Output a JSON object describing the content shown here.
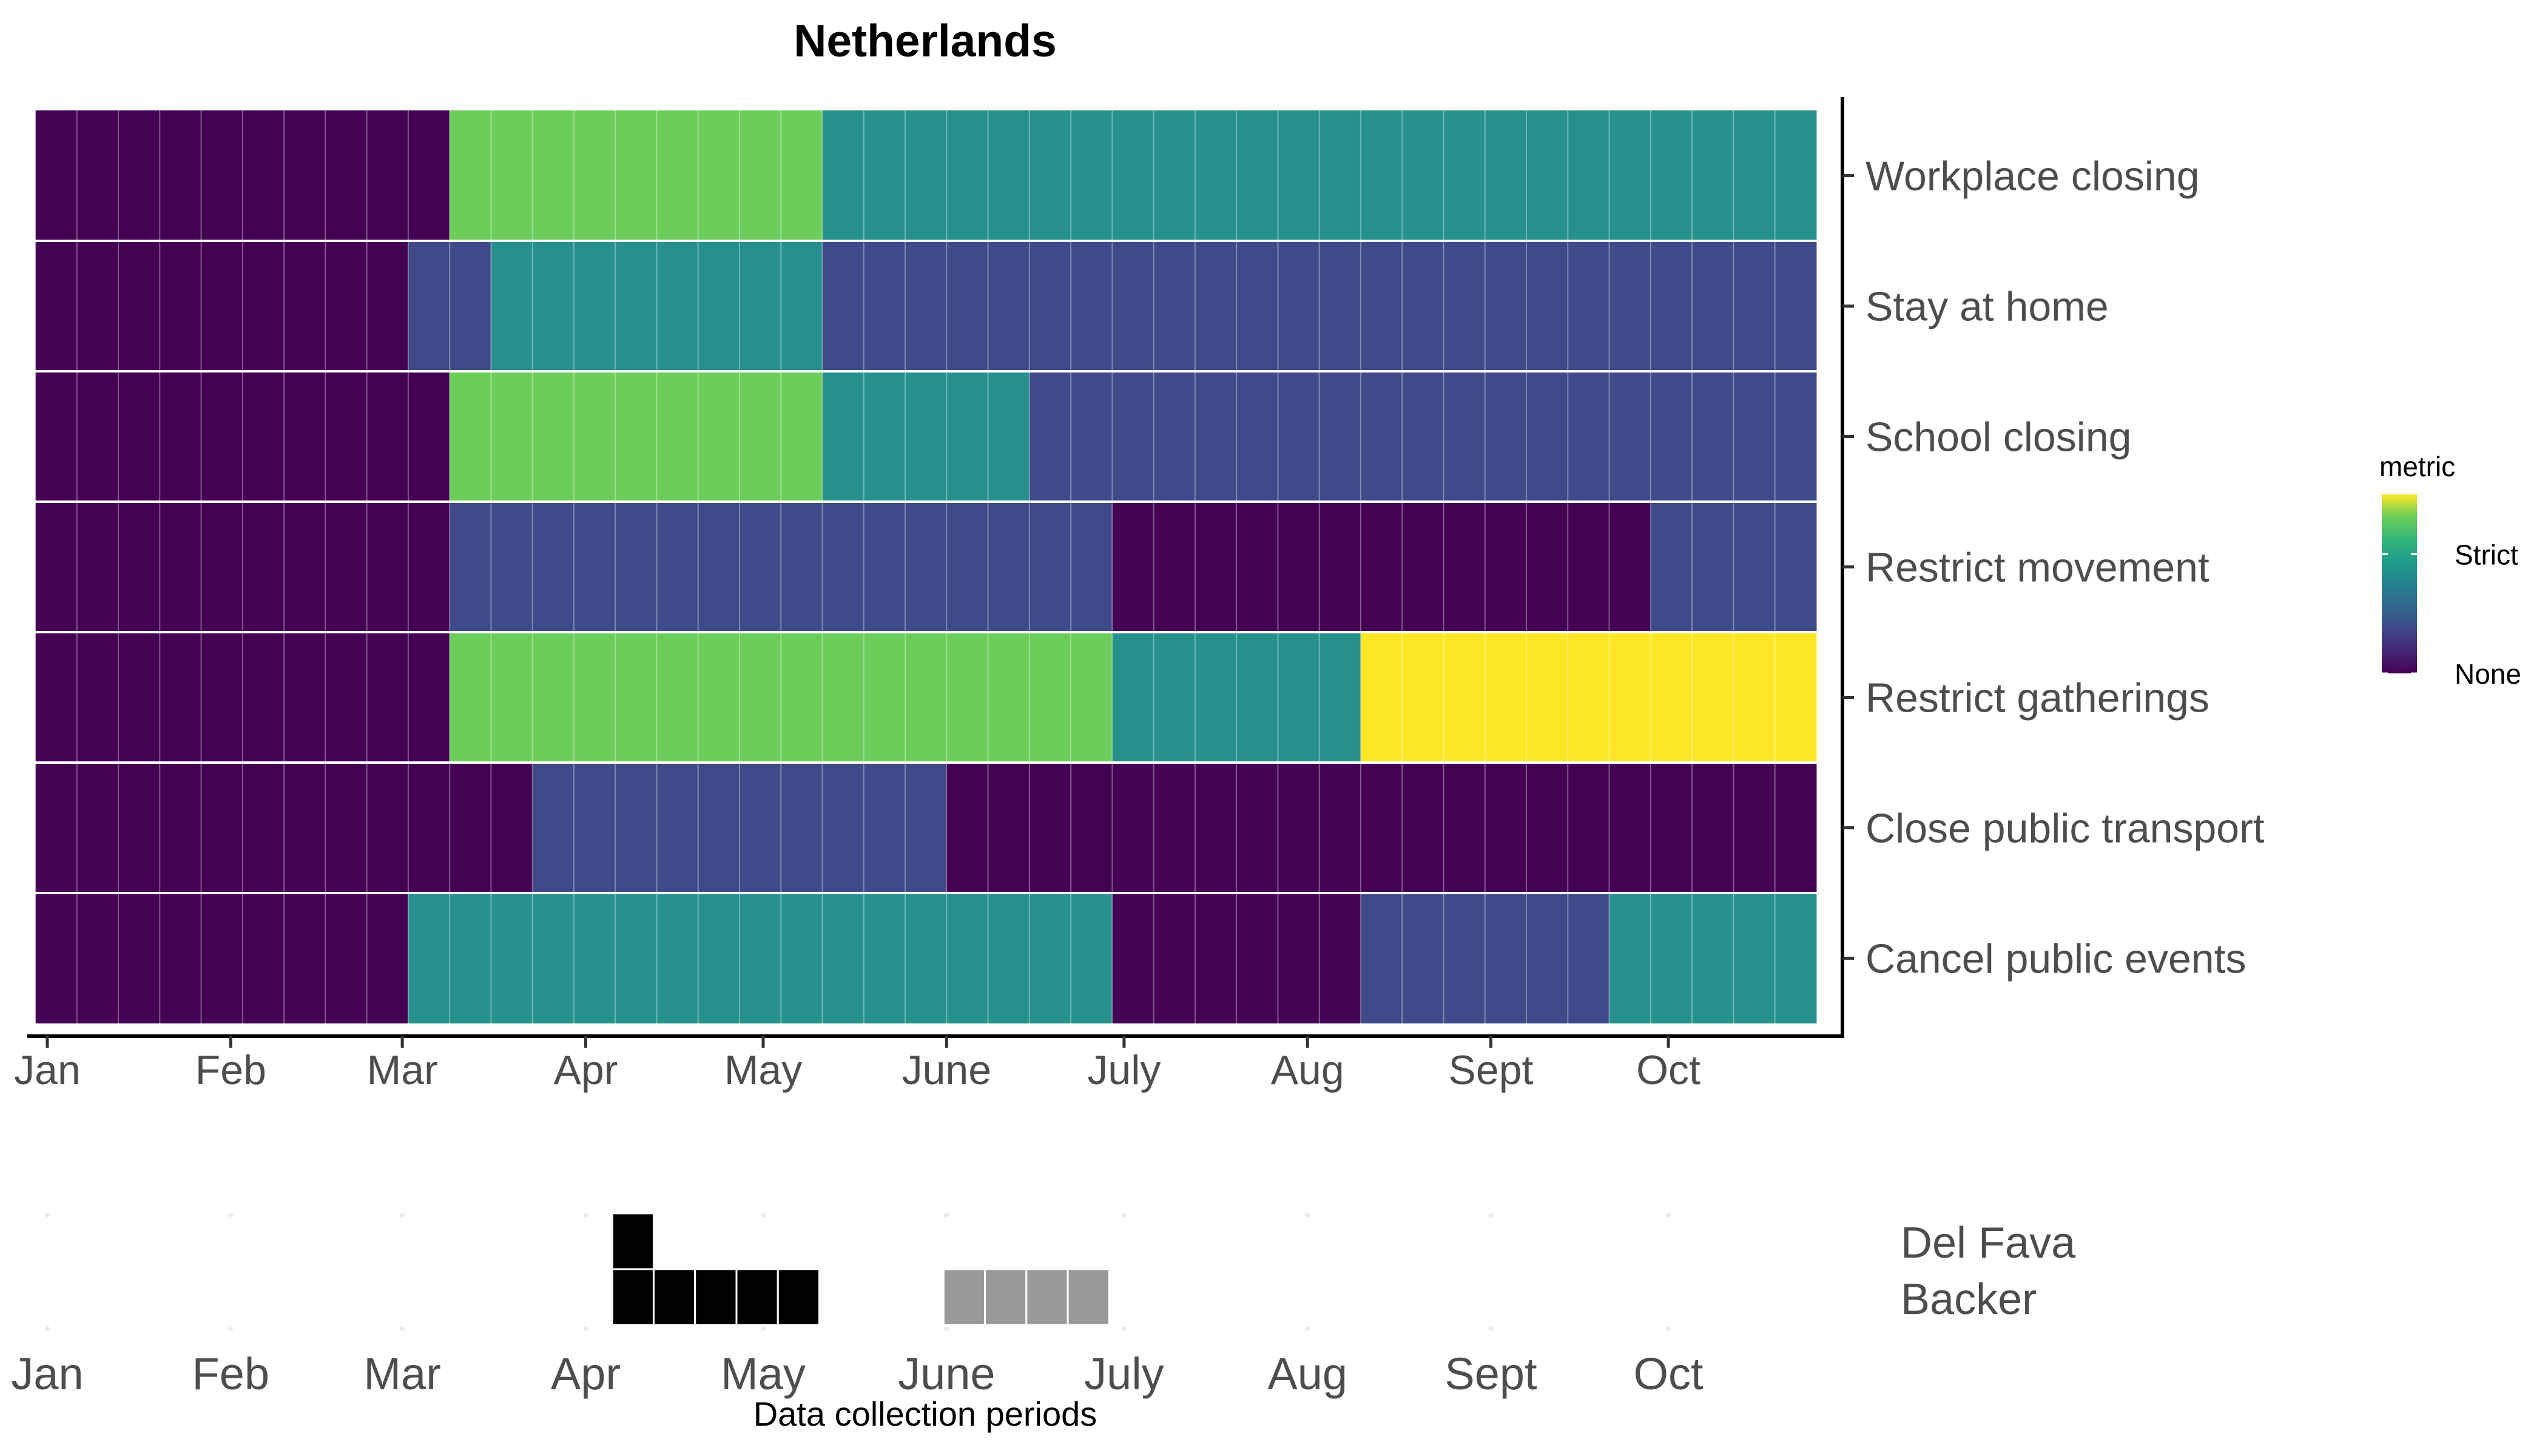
{
  "chart_data": [
    {
      "type": "heatmap",
      "title": "Netherlands",
      "x_axis": {
        "type": "date",
        "year": 2020,
        "months": [
          "Jan",
          "Feb",
          "Mar",
          "Apr",
          "May",
          "June",
          "July",
          "Aug",
          "Sept",
          "Oct"
        ],
        "tick_dates": [
          "2020-01-01",
          "2020-02-01",
          "2020-03-01",
          "2020-04-01",
          "2020-05-01",
          "2020-06-01",
          "2020-07-01",
          "2020-08-01",
          "2020-09-01",
          "2020-10-01"
        ],
        "range": [
          "2020-01-01",
          "2020-10-31"
        ],
        "cell_width_days": 7,
        "week_starts": [
          "2019-12-30",
          "2020-01-06",
          "2020-01-13",
          "2020-01-20",
          "2020-01-27",
          "2020-02-03",
          "2020-02-10",
          "2020-02-17",
          "2020-02-24",
          "2020-03-02",
          "2020-03-09",
          "2020-03-16",
          "2020-03-23",
          "2020-03-30",
          "2020-04-06",
          "2020-04-13",
          "2020-04-20",
          "2020-04-27",
          "2020-05-04",
          "2020-05-11",
          "2020-05-18",
          "2020-05-25",
          "2020-06-01",
          "2020-06-08",
          "2020-06-15",
          "2020-06-22",
          "2020-06-29",
          "2020-07-06",
          "2020-07-13",
          "2020-07-20",
          "2020-07-27",
          "2020-08-03",
          "2020-08-10",
          "2020-08-17",
          "2020-08-24",
          "2020-08-31",
          "2020-09-07",
          "2020-09-14",
          "2020-09-21",
          "2020-09-28",
          "2020-10-05",
          "2020-10-12",
          "2020-10-19"
        ]
      },
      "rows": [
        "Workplace closing",
        "Stay at home",
        "School closing",
        "Restrict movement",
        "Restrict gatherings",
        "Close public transport",
        "Cancel public events"
      ],
      "values": [
        [
          0,
          0,
          0,
          0,
          0,
          0,
          0,
          0,
          0,
          0,
          2,
          2,
          2,
          2,
          2,
          2,
          2,
          2,
          2,
          1.5,
          1.5,
          1.5,
          1.5,
          1.5,
          1.5,
          1.5,
          1.5,
          1.5,
          1.5,
          1.5,
          1.5,
          1.5,
          1.5,
          1.5,
          1.5,
          1.5,
          1.5,
          1.5,
          1.5,
          1.5,
          1.5,
          1.5,
          1.5
        ],
        [
          0,
          0,
          0,
          0,
          0,
          0,
          0,
          0,
          0,
          1,
          1,
          1.5,
          1.5,
          1.5,
          1.5,
          1.5,
          1.5,
          1.5,
          1.5,
          1,
          1,
          1,
          1,
          1,
          1,
          1,
          1,
          1,
          1,
          1,
          1,
          1,
          1,
          1,
          1,
          1,
          1,
          1,
          1,
          1,
          1,
          1,
          1
        ],
        [
          0,
          0,
          0,
          0,
          0,
          0,
          0,
          0,
          0,
          0,
          2,
          2,
          2,
          2,
          2,
          2,
          2,
          2,
          2,
          1.5,
          1.5,
          1.5,
          1.5,
          1.5,
          1,
          1,
          1,
          1,
          1,
          1,
          1,
          1,
          1,
          1,
          1,
          1,
          1,
          1,
          1,
          1,
          1,
          1,
          1
        ],
        [
          0,
          0,
          0,
          0,
          0,
          0,
          0,
          0,
          0,
          0,
          1,
          1,
          1,
          1,
          1,
          1,
          1,
          1,
          1,
          1,
          1,
          1,
          1,
          1,
          1,
          1,
          0,
          0,
          0,
          0,
          0,
          0,
          0,
          0,
          0,
          0,
          0,
          0,
          0,
          1,
          1,
          1,
          1
        ],
        [
          0,
          0,
          0,
          0,
          0,
          0,
          0,
          0,
          0,
          0,
          2,
          2,
          2,
          2,
          2,
          2,
          2,
          2,
          2,
          2,
          2,
          2,
          2,
          2,
          2,
          2,
          1.5,
          1.5,
          1.5,
          1.5,
          1.5,
          1.5,
          3,
          3,
          3,
          3,
          3,
          3,
          3,
          3,
          3,
          3,
          3
        ],
        [
          0,
          0,
          0,
          0,
          0,
          0,
          0,
          0,
          0,
          0,
          0,
          0,
          1,
          1,
          1,
          1,
          1,
          1,
          1,
          1,
          1,
          1,
          0,
          0,
          0,
          0,
          0,
          0,
          0,
          0,
          0,
          0,
          0,
          0,
          0,
          0,
          0,
          0,
          0,
          0,
          0,
          0,
          0
        ],
        [
          0,
          0,
          0,
          0,
          0,
          0,
          0,
          0,
          0,
          1.5,
          1.5,
          1.5,
          1.5,
          1.5,
          1.5,
          1.5,
          1.5,
          1.5,
          1.5,
          1.5,
          1.5,
          1.5,
          1.5,
          1.5,
          1.5,
          1.5,
          0,
          0,
          0,
          0,
          0,
          0,
          1,
          1,
          1,
          1,
          1,
          1,
          1.5,
          1.5,
          1.5,
          1.5,
          1.5
        ]
      ],
      "value_range": [
        0,
        3
      ],
      "legend": {
        "title": "metric",
        "labels": [
          {
            "text": "Strict",
            "value": 2
          },
          {
            "text": "None",
            "value": 0
          }
        ],
        "placement": "right"
      }
    },
    {
      "type": "bar",
      "xlabel": "Data collection periods",
      "x_axis": {
        "months": [
          "Jan",
          "Feb",
          "Mar",
          "Apr",
          "May",
          "June",
          "July",
          "Aug",
          "Sept",
          "Oct"
        ]
      },
      "series": [
        {
          "name": "Del Fava",
          "week_starts": [
            "2020-04-06"
          ],
          "color": "#000000"
        },
        {
          "name": "Backer",
          "week_starts": [
            "2020-04-06",
            "2020-04-13",
            "2020-04-20",
            "2020-04-27",
            "2020-05-04"
          ],
          "color": "#000000"
        },
        {
          "name": "Backer",
          "week_starts": [
            "2020-06-01",
            "2020-06-08",
            "2020-06-15",
            "2020-06-22"
          ],
          "color": "#999999"
        }
      ]
    }
  ]
}
